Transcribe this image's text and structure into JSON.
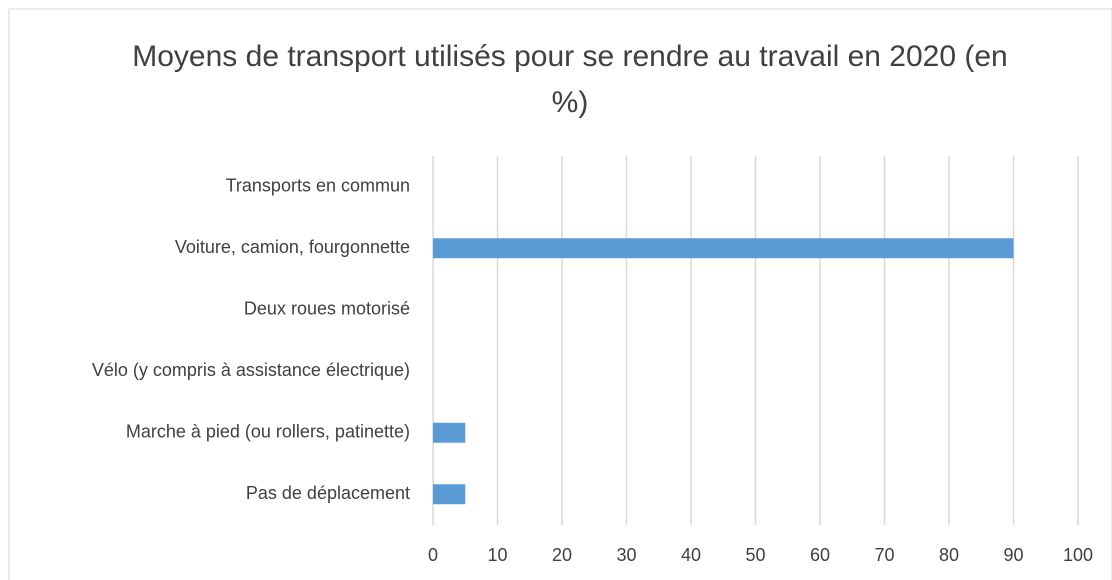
{
  "chart_data": {
    "type": "barh",
    "title": "Moyens de transport utilisés pour se rendre au travail en 2020 (en %)",
    "categories": [
      "Transports en commun",
      "Voiture, camion, fourgonnette",
      "Deux roues motorisé",
      "Vélo (y compris à assistance électrique)",
      "Marche à pied (ou rollers, patinette)",
      "Pas de déplacement"
    ],
    "values": [
      0,
      90,
      0,
      0,
      5,
      5
    ],
    "color": "#5b9bd5",
    "xlim": [
      0,
      100
    ],
    "xticks": [
      0,
      10,
      20,
      30,
      40,
      50,
      60,
      70,
      80,
      90,
      100
    ],
    "grid": true
  }
}
